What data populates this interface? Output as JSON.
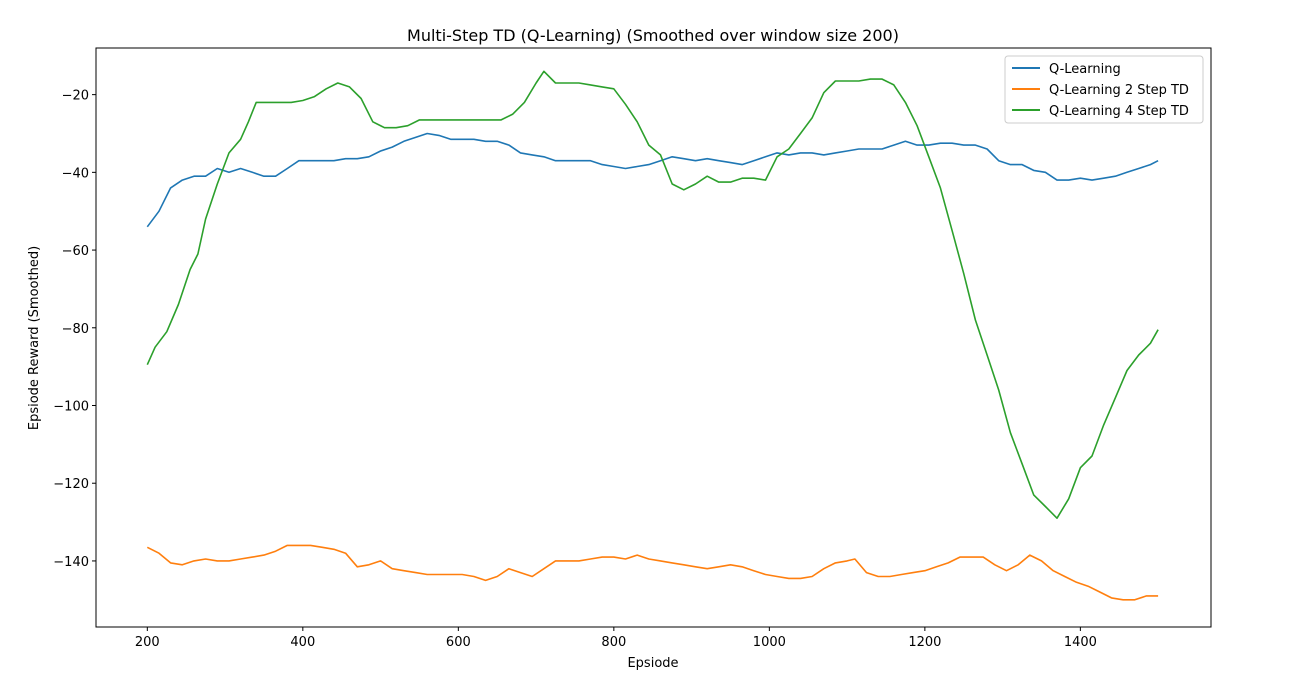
{
  "chart_data": {
    "type": "line",
    "title": "Multi-Step TD (Q-Learning) (Smoothed over window size 200)",
    "xlabel": "Epsiode",
    "ylabel": "Epsiode Reward (Smoothed)",
    "xlim": [
      134,
      1568
    ],
    "ylim": [
      -157,
      -8
    ],
    "xticks": [
      200,
      400,
      600,
      800,
      1000,
      1200,
      1400
    ],
    "yticks": [
      -140,
      -120,
      -100,
      -80,
      -60,
      -40,
      -20
    ],
    "grid": false,
    "legend_position": "top-right",
    "series": [
      {
        "name": "Q-Learning",
        "color": "#1f77b4",
        "points": [
          [
            200,
            -54
          ],
          [
            215,
            -50
          ],
          [
            230,
            -44
          ],
          [
            245,
            -42
          ],
          [
            260,
            -41
          ],
          [
            275,
            -41
          ],
          [
            290,
            -39
          ],
          [
            305,
            -40
          ],
          [
            320,
            -39
          ],
          [
            335,
            -40
          ],
          [
            350,
            -41
          ],
          [
            365,
            -41
          ],
          [
            380,
            -39
          ],
          [
            395,
            -37
          ],
          [
            410,
            -37
          ],
          [
            425,
            -37
          ],
          [
            440,
            -37
          ],
          [
            455,
            -36.5
          ],
          [
            470,
            -36.5
          ],
          [
            485,
            -36
          ],
          [
            500,
            -34.5
          ],
          [
            515,
            -33.5
          ],
          [
            530,
            -32
          ],
          [
            545,
            -31
          ],
          [
            560,
            -30
          ],
          [
            575,
            -30.5
          ],
          [
            590,
            -31.5
          ],
          [
            605,
            -31.5
          ],
          [
            620,
            -31.5
          ],
          [
            635,
            -32
          ],
          [
            650,
            -32
          ],
          [
            665,
            -33
          ],
          [
            680,
            -35
          ],
          [
            695,
            -35.5
          ],
          [
            710,
            -36
          ],
          [
            725,
            -37
          ],
          [
            740,
            -37
          ],
          [
            755,
            -37
          ],
          [
            770,
            -37
          ],
          [
            785,
            -38
          ],
          [
            800,
            -38.5
          ],
          [
            815,
            -39
          ],
          [
            830,
            -38.5
          ],
          [
            845,
            -38
          ],
          [
            860,
            -37
          ],
          [
            875,
            -36
          ],
          [
            890,
            -36.5
          ],
          [
            905,
            -37
          ],
          [
            920,
            -36.5
          ],
          [
            935,
            -37
          ],
          [
            950,
            -37.5
          ],
          [
            965,
            -38
          ],
          [
            980,
            -37
          ],
          [
            995,
            -36
          ],
          [
            1010,
            -35
          ],
          [
            1025,
            -35.5
          ],
          [
            1040,
            -35
          ],
          [
            1055,
            -35
          ],
          [
            1070,
            -35.5
          ],
          [
            1085,
            -35
          ],
          [
            1100,
            -34.5
          ],
          [
            1115,
            -34
          ],
          [
            1130,
            -34
          ],
          [
            1145,
            -34
          ],
          [
            1160,
            -33
          ],
          [
            1175,
            -32
          ],
          [
            1190,
            -33
          ],
          [
            1205,
            -33
          ],
          [
            1220,
            -32.5
          ],
          [
            1235,
            -32.5
          ],
          [
            1250,
            -33
          ],
          [
            1265,
            -33
          ],
          [
            1280,
            -34
          ],
          [
            1295,
            -37
          ],
          [
            1310,
            -38
          ],
          [
            1325,
            -38
          ],
          [
            1340,
            -39.5
          ],
          [
            1355,
            -40
          ],
          [
            1370,
            -42
          ],
          [
            1385,
            -42
          ],
          [
            1400,
            -41.5
          ],
          [
            1415,
            -42
          ],
          [
            1430,
            -41.5
          ],
          [
            1445,
            -41
          ],
          [
            1460,
            -40
          ],
          [
            1475,
            -39
          ],
          [
            1490,
            -38
          ],
          [
            1500,
            -37
          ]
        ]
      },
      {
        "name": "Q-Learning 2 Step TD",
        "color": "#ff7f0e",
        "points": [
          [
            200,
            -136.5
          ],
          [
            215,
            -138
          ],
          [
            230,
            -140.5
          ],
          [
            245,
            -141
          ],
          [
            260,
            -140
          ],
          [
            275,
            -139.5
          ],
          [
            290,
            -140
          ],
          [
            305,
            -140
          ],
          [
            320,
            -139.5
          ],
          [
            335,
            -139
          ],
          [
            350,
            -138.5
          ],
          [
            365,
            -137.5
          ],
          [
            380,
            -136
          ],
          [
            395,
            -136
          ],
          [
            410,
            -136
          ],
          [
            425,
            -136.5
          ],
          [
            440,
            -137
          ],
          [
            455,
            -138
          ],
          [
            470,
            -141.5
          ],
          [
            485,
            -141
          ],
          [
            500,
            -140
          ],
          [
            515,
            -142
          ],
          [
            530,
            -142.5
          ],
          [
            545,
            -143
          ],
          [
            560,
            -143.5
          ],
          [
            575,
            -143.5
          ],
          [
            590,
            -143.5
          ],
          [
            605,
            -143.5
          ],
          [
            620,
            -144
          ],
          [
            635,
            -145
          ],
          [
            650,
            -144
          ],
          [
            665,
            -142
          ],
          [
            680,
            -143
          ],
          [
            695,
            -144
          ],
          [
            710,
            -142
          ],
          [
            725,
            -140
          ],
          [
            740,
            -140
          ],
          [
            755,
            -140
          ],
          [
            770,
            -139.5
          ],
          [
            785,
            -139
          ],
          [
            800,
            -139
          ],
          [
            815,
            -139.5
          ],
          [
            830,
            -138.5
          ],
          [
            845,
            -139.5
          ],
          [
            860,
            -140
          ],
          [
            875,
            -140.5
          ],
          [
            890,
            -141
          ],
          [
            905,
            -141.5
          ],
          [
            920,
            -142
          ],
          [
            935,
            -141.5
          ],
          [
            950,
            -141
          ],
          [
            965,
            -141.5
          ],
          [
            980,
            -142.5
          ],
          [
            995,
            -143.5
          ],
          [
            1010,
            -144
          ],
          [
            1025,
            -144.5
          ],
          [
            1040,
            -144.5
          ],
          [
            1055,
            -144
          ],
          [
            1070,
            -142
          ],
          [
            1085,
            -140.5
          ],
          [
            1100,
            -140
          ],
          [
            1110,
            -139.5
          ],
          [
            1125,
            -143
          ],
          [
            1140,
            -144
          ],
          [
            1155,
            -144
          ],
          [
            1170,
            -143.5
          ],
          [
            1185,
            -143
          ],
          [
            1200,
            -142.5
          ],
          [
            1215,
            -141.5
          ],
          [
            1230,
            -140.5
          ],
          [
            1245,
            -139
          ],
          [
            1260,
            -139
          ],
          [
            1275,
            -139
          ],
          [
            1290,
            -141
          ],
          [
            1305,
            -142.5
          ],
          [
            1320,
            -141
          ],
          [
            1335,
            -138.5
          ],
          [
            1350,
            -140
          ],
          [
            1365,
            -142.5
          ],
          [
            1380,
            -144
          ],
          [
            1395,
            -145.5
          ],
          [
            1410,
            -146.5
          ],
          [
            1425,
            -148
          ],
          [
            1440,
            -149.5
          ],
          [
            1455,
            -150
          ],
          [
            1470,
            -150
          ],
          [
            1485,
            -149
          ],
          [
            1500,
            -149
          ]
        ]
      },
      {
        "name": "Q-Learning 4 Step TD",
        "color": "#2ca02c",
        "points": [
          [
            200,
            -89.5
          ],
          [
            210,
            -85
          ],
          [
            225,
            -81
          ],
          [
            240,
            -74
          ],
          [
            255,
            -65
          ],
          [
            265,
            -61
          ],
          [
            275,
            -52
          ],
          [
            290,
            -43
          ],
          [
            305,
            -35
          ],
          [
            320,
            -31.5
          ],
          [
            330,
            -27
          ],
          [
            340,
            -22
          ],
          [
            355,
            -22
          ],
          [
            370,
            -22
          ],
          [
            385,
            -22
          ],
          [
            400,
            -21.5
          ],
          [
            415,
            -20.5
          ],
          [
            430,
            -18.5
          ],
          [
            445,
            -17
          ],
          [
            460,
            -18
          ],
          [
            475,
            -21
          ],
          [
            490,
            -27
          ],
          [
            505,
            -28.5
          ],
          [
            520,
            -28.5
          ],
          [
            535,
            -28
          ],
          [
            550,
            -26.5
          ],
          [
            565,
            -26.5
          ],
          [
            580,
            -26.5
          ],
          [
            595,
            -26.5
          ],
          [
            610,
            -26.5
          ],
          [
            625,
            -26.5
          ],
          [
            640,
            -26.5
          ],
          [
            655,
            -26.5
          ],
          [
            670,
            -25
          ],
          [
            685,
            -22
          ],
          [
            700,
            -17
          ],
          [
            710,
            -14
          ],
          [
            725,
            -17
          ],
          [
            740,
            -17
          ],
          [
            755,
            -17
          ],
          [
            770,
            -17.5
          ],
          [
            785,
            -18
          ],
          [
            800,
            -18.5
          ],
          [
            815,
            -22.5
          ],
          [
            830,
            -27
          ],
          [
            845,
            -33
          ],
          [
            860,
            -35.5
          ],
          [
            875,
            -43
          ],
          [
            890,
            -44.5
          ],
          [
            905,
            -43
          ],
          [
            920,
            -41
          ],
          [
            935,
            -42.5
          ],
          [
            950,
            -42.5
          ],
          [
            965,
            -41.5
          ],
          [
            980,
            -41.5
          ],
          [
            995,
            -42
          ],
          [
            1010,
            -36
          ],
          [
            1025,
            -34
          ],
          [
            1040,
            -30
          ],
          [
            1055,
            -26
          ],
          [
            1070,
            -19.5
          ],
          [
            1085,
            -16.5
          ],
          [
            1100,
            -16.5
          ],
          [
            1115,
            -16.5
          ],
          [
            1130,
            -16
          ],
          [
            1145,
            -16
          ],
          [
            1160,
            -17.5
          ],
          [
            1175,
            -22
          ],
          [
            1190,
            -28
          ],
          [
            1205,
            -36
          ],
          [
            1220,
            -44
          ],
          [
            1235,
            -55
          ],
          [
            1250,
            -66
          ],
          [
            1265,
            -78
          ],
          [
            1280,
            -87
          ],
          [
            1295,
            -96
          ],
          [
            1310,
            -107
          ],
          [
            1325,
            -115
          ],
          [
            1340,
            -123
          ],
          [
            1355,
            -126
          ],
          [
            1370,
            -129
          ],
          [
            1385,
            -124
          ],
          [
            1400,
            -116
          ],
          [
            1415,
            -113
          ],
          [
            1430,
            -105
          ],
          [
            1445,
            -98
          ],
          [
            1460,
            -91
          ],
          [
            1475,
            -87
          ],
          [
            1490,
            -84
          ],
          [
            1500,
            -80.5
          ]
        ]
      }
    ]
  }
}
